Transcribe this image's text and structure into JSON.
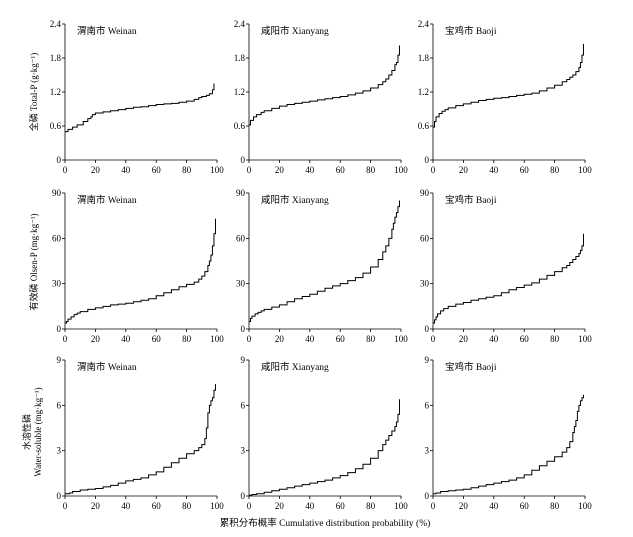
{
  "figure": {
    "xlabel": "累积分布概率 Cumulative distribution probability (%)",
    "row_ylabels": [
      [
        "全磷 Total-P (g·kg⁻¹)"
      ],
      [
        "有效磷 Olsen-P (mg·kg⁻¹)"
      ],
      [
        "水溶性磷",
        "Water-soluble (mg·kg⁻¹)"
      ]
    ]
  },
  "chart_data": [
    {
      "type": "line",
      "row": 0,
      "col": 0,
      "title": "渭南市 Weinan",
      "xlim": [
        0,
        100
      ],
      "ylim": [
        0,
        2.4
      ],
      "xticks": [
        "0",
        "20",
        "40",
        "60",
        "80",
        "100"
      ],
      "yticks": [
        "0",
        "0.6",
        "1.2",
        "1.8",
        "2.4"
      ],
      "x": [
        0,
        2,
        5,
        8,
        12,
        15,
        17,
        18,
        20,
        25,
        30,
        35,
        40,
        45,
        50,
        55,
        60,
        65,
        70,
        75,
        80,
        85,
        88,
        90,
        93,
        95,
        97,
        98
      ],
      "y": [
        0.5,
        0.54,
        0.58,
        0.62,
        0.68,
        0.73,
        0.76,
        0.8,
        0.83,
        0.85,
        0.87,
        0.89,
        0.91,
        0.93,
        0.94,
        0.96,
        0.98,
        0.99,
        1.0,
        1.02,
        1.04,
        1.07,
        1.1,
        1.12,
        1.14,
        1.17,
        1.24,
        1.35
      ]
    },
    {
      "type": "line",
      "row": 0,
      "col": 1,
      "title": "咸阳市 Xianyang",
      "xlim": [
        0,
        100
      ],
      "ylim": [
        0,
        2.4
      ],
      "xticks": [
        "0",
        "20",
        "40",
        "60",
        "80",
        "100"
      ],
      "yticks": [
        "0",
        "0.6",
        "1.2",
        "1.8",
        "2.4"
      ],
      "x": [
        0,
        1,
        3,
        5,
        8,
        10,
        15,
        20,
        25,
        30,
        35,
        40,
        45,
        50,
        55,
        60,
        65,
        70,
        75,
        80,
        85,
        88,
        90,
        92,
        94,
        96,
        97,
        98,
        99
      ],
      "y": [
        0.62,
        0.7,
        0.76,
        0.8,
        0.84,
        0.87,
        0.91,
        0.95,
        0.98,
        1.0,
        1.02,
        1.04,
        1.06,
        1.08,
        1.1,
        1.12,
        1.15,
        1.18,
        1.22,
        1.27,
        1.33,
        1.38,
        1.43,
        1.5,
        1.58,
        1.68,
        1.72,
        1.85,
        2.02
      ]
    },
    {
      "type": "line",
      "row": 0,
      "col": 2,
      "title": "宝鸡市 Baoji",
      "xlim": [
        0,
        100
      ],
      "ylim": [
        0,
        2.4
      ],
      "xticks": [
        "0",
        "20",
        "40",
        "60",
        "80",
        "100"
      ],
      "yticks": [
        "0",
        "0.6",
        "1.2",
        "1.8",
        "2.4"
      ],
      "x": [
        0,
        1,
        2,
        4,
        6,
        8,
        10,
        15,
        20,
        25,
        30,
        35,
        40,
        45,
        50,
        55,
        60,
        65,
        70,
        75,
        80,
        85,
        88,
        90,
        92,
        94,
        96,
        97,
        98,
        99
      ],
      "y": [
        0.58,
        0.68,
        0.76,
        0.82,
        0.86,
        0.89,
        0.92,
        0.96,
        0.99,
        1.02,
        1.05,
        1.07,
        1.09,
        1.1,
        1.12,
        1.14,
        1.16,
        1.18,
        1.22,
        1.27,
        1.32,
        1.38,
        1.42,
        1.46,
        1.5,
        1.56,
        1.63,
        1.72,
        1.85,
        2.05
      ]
    },
    {
      "type": "line",
      "row": 1,
      "col": 0,
      "title": "渭南市 Weinan",
      "xlim": [
        0,
        100
      ],
      "ylim": [
        0,
        90
      ],
      "xticks": [
        "0",
        "20",
        "40",
        "60",
        "80",
        "100"
      ],
      "yticks": [
        "0",
        "30",
        "60",
        "90"
      ],
      "x": [
        0,
        1,
        2,
        4,
        6,
        8,
        10,
        15,
        20,
        25,
        30,
        35,
        40,
        45,
        50,
        55,
        60,
        65,
        70,
        75,
        80,
        85,
        88,
        90,
        92,
        94,
        95,
        96,
        97,
        98,
        99
      ],
      "y": [
        4,
        5,
        6.5,
        8,
        9.5,
        10.5,
        11.5,
        13,
        14,
        15,
        16,
        16.5,
        17,
        18,
        19,
        20,
        22,
        24,
        26,
        28,
        29.5,
        31,
        33,
        35,
        38,
        42,
        45,
        49,
        55,
        63,
        73
      ]
    },
    {
      "type": "line",
      "row": 1,
      "col": 1,
      "title": "咸阳市 Xianyang",
      "xlim": [
        0,
        100
      ],
      "ylim": [
        0,
        90
      ],
      "xticks": [
        "0",
        "20",
        "40",
        "60",
        "80",
        "100"
      ],
      "yticks": [
        "0",
        "30",
        "60",
        "90"
      ],
      "x": [
        0,
        1,
        2,
        4,
        6,
        8,
        10,
        15,
        20,
        25,
        30,
        35,
        40,
        45,
        50,
        55,
        60,
        65,
        70,
        75,
        80,
        85,
        88,
        90,
        92,
        94,
        95,
        96,
        97,
        98,
        99
      ],
      "y": [
        5,
        7,
        8.5,
        10,
        11,
        12,
        13,
        14.5,
        16,
        18,
        20,
        21.5,
        23,
        25,
        27,
        28.5,
        30,
        32,
        34,
        37,
        41,
        46,
        51,
        55,
        60,
        66,
        70,
        74,
        77,
        81,
        85
      ]
    },
    {
      "type": "line",
      "row": 1,
      "col": 2,
      "title": "宝鸡市 Baoji",
      "xlim": [
        0,
        100
      ],
      "ylim": [
        0,
        90
      ],
      "xticks": [
        "0",
        "20",
        "40",
        "60",
        "80",
        "100"
      ],
      "yticks": [
        "0",
        "30",
        "60",
        "90"
      ],
      "x": [
        0,
        1,
        2,
        3,
        5,
        7,
        10,
        15,
        20,
        25,
        30,
        35,
        40,
        45,
        50,
        55,
        60,
        65,
        70,
        75,
        80,
        85,
        88,
        90,
        92,
        94,
        96,
        97,
        98,
        99
      ],
      "y": [
        4,
        6,
        8,
        10,
        12,
        13.5,
        15,
        16.5,
        17.5,
        19,
        20,
        21,
        22,
        24,
        26,
        27.5,
        29,
        30.5,
        33,
        35.5,
        38,
        40.5,
        42,
        44,
        46,
        48,
        50,
        52,
        55,
        63
      ]
    },
    {
      "type": "line",
      "row": 2,
      "col": 0,
      "title": "渭南市 Weinan",
      "xlim": [
        0,
        100
      ],
      "ylim": [
        0,
        9
      ],
      "xticks": [
        "0",
        "20",
        "40",
        "60",
        "80",
        "100"
      ],
      "yticks": [
        "0",
        "3",
        "6",
        "9"
      ],
      "x": [
        0,
        3,
        5,
        10,
        15,
        20,
        25,
        30,
        35,
        40,
        45,
        50,
        55,
        60,
        65,
        70,
        75,
        80,
        85,
        88,
        90,
        92,
        93,
        94,
        95,
        96,
        97,
        98,
        99
      ],
      "y": [
        0.15,
        0.2,
        0.3,
        0.4,
        0.45,
        0.5,
        0.6,
        0.7,
        0.85,
        1.0,
        1.1,
        1.2,
        1.4,
        1.6,
        1.9,
        2.2,
        2.5,
        2.8,
        3.0,
        3.2,
        3.4,
        3.8,
        4.5,
        5.5,
        6.0,
        6.3,
        6.5,
        7.0,
        7.4
      ]
    },
    {
      "type": "line",
      "row": 2,
      "col": 1,
      "title": "咸阳市 Xianyang",
      "xlim": [
        0,
        100
      ],
      "ylim": [
        0,
        9
      ],
      "xticks": [
        "0",
        "20",
        "40",
        "60",
        "80",
        "100"
      ],
      "yticks": [
        "0",
        "3",
        "6",
        "9"
      ],
      "x": [
        0,
        2,
        5,
        10,
        15,
        20,
        25,
        30,
        35,
        40,
        45,
        50,
        55,
        60,
        65,
        70,
        75,
        80,
        85,
        88,
        90,
        92,
        94,
        96,
        97,
        98,
        99
      ],
      "y": [
        0.05,
        0.1,
        0.15,
        0.25,
        0.35,
        0.45,
        0.55,
        0.65,
        0.75,
        0.85,
        0.95,
        1.05,
        1.2,
        1.35,
        1.55,
        1.8,
        2.1,
        2.5,
        3.0,
        3.4,
        3.7,
        4.0,
        4.3,
        4.6,
        4.9,
        5.4,
        6.4
      ]
    },
    {
      "type": "line",
      "row": 2,
      "col": 2,
      "title": "宝鸡市 Baoji",
      "xlim": [
        0,
        100
      ],
      "ylim": [
        0,
        9
      ],
      "xticks": [
        "0",
        "20",
        "40",
        "60",
        "80",
        "100"
      ],
      "yticks": [
        "0",
        "3",
        "6",
        "9"
      ],
      "x": [
        0,
        2,
        5,
        10,
        15,
        20,
        25,
        30,
        35,
        40,
        45,
        50,
        55,
        60,
        65,
        70,
        75,
        80,
        85,
        88,
        90,
        92,
        93,
        94,
        95,
        96,
        97,
        98,
        99
      ],
      "y": [
        0.15,
        0.2,
        0.3,
        0.35,
        0.4,
        0.45,
        0.55,
        0.65,
        0.75,
        0.85,
        0.95,
        1.05,
        1.2,
        1.4,
        1.7,
        2.0,
        2.3,
        2.6,
        2.9,
        3.2,
        3.6,
        4.2,
        4.6,
        5.0,
        5.6,
        6.0,
        6.3,
        6.5,
        6.7
      ]
    }
  ]
}
